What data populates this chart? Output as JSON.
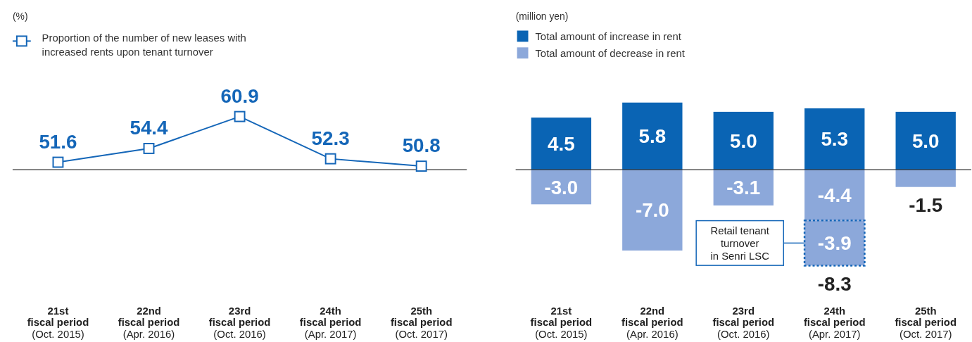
{
  "chart_data": [
    {
      "type": "line",
      "legend_title": "(%)",
      "categories": [
        "21st\nfiscal period\n(Oct. 2015)",
        "22nd\nfiscal period\n(Apr. 2016)",
        "23rd\nfiscal period\n(Oct. 2016)",
        "24th\nfiscal period\n(Apr. 2017)",
        "25th\nfiscal period\n(Oct. 2017)"
      ],
      "series": [
        {
          "name": "Proportion of the number of new leases with\nincreased rents upon tenant turnover",
          "color": "#1466b8",
          "values": [
            51.6,
            54.4,
            60.9,
            52.3,
            50.8
          ]
        }
      ],
      "tick_labels": "x",
      "marker": "square",
      "data_labels": true,
      "legend": "top left"
    },
    {
      "type": "bar",
      "stacked": true,
      "ylabel": "(million yen)",
      "categories": [
        "21st\nfiscal period\n(Oct. 2015)",
        "22nd\nfiscal period\n(Apr. 2016)",
        "23rd\nfiscal period\n(Oct. 2016)",
        "24th\nfiscal period\n(Apr. 2017)",
        "25th\nfiscal period\n(Oct. 2017)"
      ],
      "series": [
        {
          "name": "Total amount of increase in rent",
          "color": "#0a64b4",
          "values": [
            4.5,
            5.8,
            5.0,
            5.3,
            5.0
          ],
          "value_labels": [
            "4.5",
            "5.8",
            "5.0",
            "5.3",
            "5.0"
          ]
        },
        {
          "name": "Total amount of decrease in rent",
          "color": "#8ca8da",
          "values": [
            -3.0,
            -7.0,
            -3.1,
            -4.4,
            -1.5
          ],
          "value_labels": [
            "-3.0",
            "-7.0",
            "-3.1",
            "-4.4",
            "-1.5"
          ]
        },
        {
          "color": "#8ca8da",
          "line_style": "dashed",
          "values": [
            null,
            null,
            null,
            -3.9,
            null
          ],
          "value_labels": [
            null,
            null,
            null,
            "-3.9",
            null
          ]
        }
      ],
      "annotations": [
        "Retail tenant\nturnover\nin Senri LSC",
        {
          "text": "-8.3",
          "x": "24th\nfiscal period\n(Apr. 2017)",
          "y": -8.3
        }
      ],
      "tick_labels": "x",
      "legend": "top left"
    }
  ]
}
